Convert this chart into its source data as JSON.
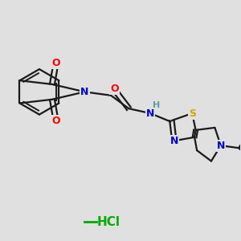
{
  "background_color": "#e0e0e0",
  "bond_color": "#1a1a1a",
  "atom_colors": {
    "O": "#ff0000",
    "N": "#0000cc",
    "S": "#ccaa00",
    "H": "#5f9ea0",
    "Cl": "#00aa00",
    "C": "#1a1a1a"
  },
  "figsize": [
    3.0,
    3.0
  ],
  "dpi": 100
}
